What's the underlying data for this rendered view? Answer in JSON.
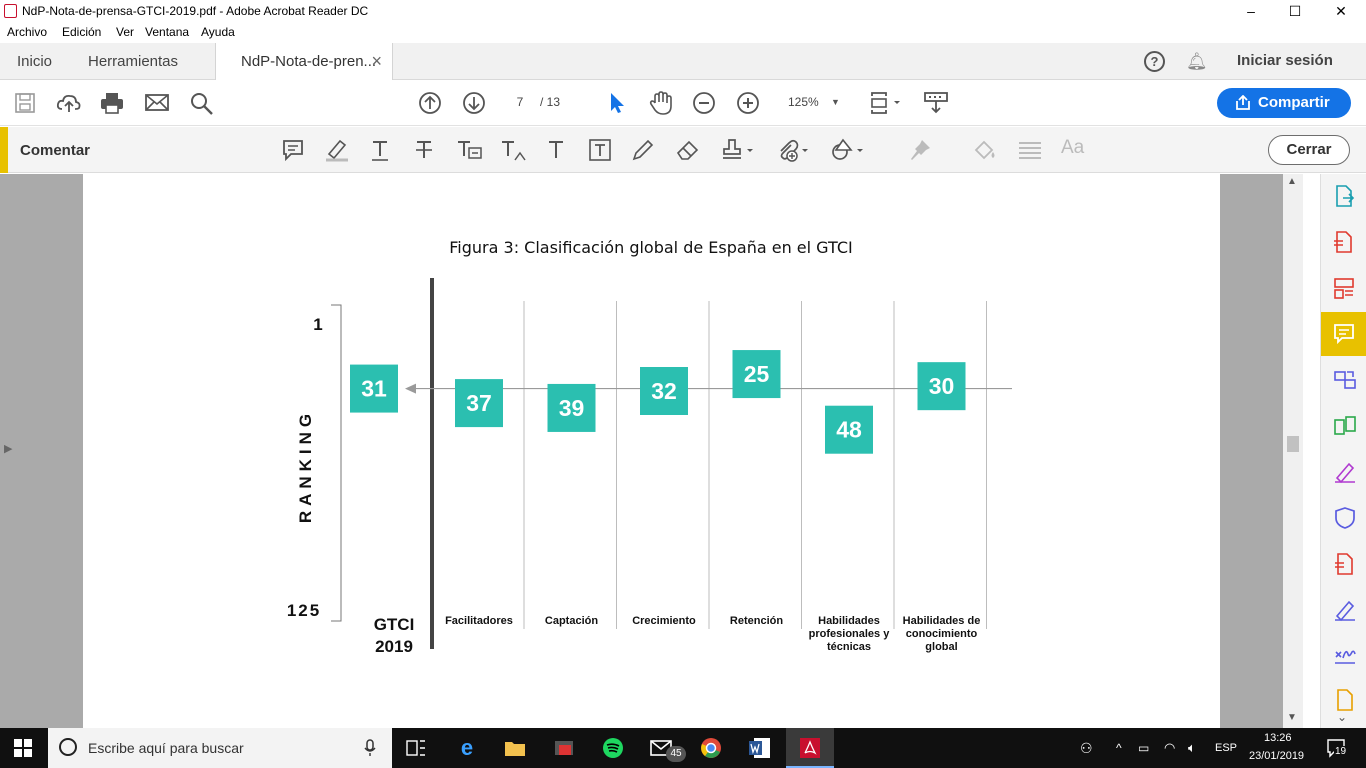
{
  "window": {
    "title": "NdP-Nota-de-prensa-GTCI-2019.pdf - Adobe Acrobat Reader DC",
    "controls": [
      "–",
      "☐",
      "✕"
    ]
  },
  "menubar": [
    "Archivo",
    "Edición",
    "Ver",
    "Ventana",
    "Ayuda"
  ],
  "tabs": {
    "home": "Inicio",
    "tools": "Herramientas",
    "document": "NdP-Nota-de-pren...",
    "close": "×",
    "help": "?",
    "sign_in": "Iniciar sesión"
  },
  "toolbar": {
    "page_current": "7",
    "page_total": "/ 13",
    "zoom": "125%",
    "share_label": "Compartir"
  },
  "commentbar": {
    "label": "Comentar",
    "close_label": "Cerrar",
    "text_size_icon": "Aa"
  },
  "document": {
    "chart_data": {
      "type": "scatter",
      "title": "Figura 3: Clasificación global de España en el GTCI",
      "ylabel": "RANKING",
      "y_tick_top": "1",
      "y_tick_bottom": "125",
      "ylim": [
        1,
        125
      ],
      "y_inverted": true,
      "overall": {
        "label_line1": "GTCI",
        "label_line2": "2019",
        "value": 31
      },
      "categories": [
        {
          "label": [
            "Facilitadores"
          ],
          "value": 37
        },
        {
          "label": [
            "Captación"
          ],
          "value": 39
        },
        {
          "label": [
            "Crecimiento"
          ],
          "value": 32
        },
        {
          "label": [
            "Retención"
          ],
          "value": 25
        },
        {
          "label": [
            "Habilidades",
            "profesionales y",
            "técnicas"
          ],
          "value": 48
        },
        {
          "label": [
            "Habilidades de",
            "conocimiento",
            "global"
          ],
          "value": 30
        }
      ],
      "box_color": "#2bbfb0",
      "reference_line_value": 31
    }
  },
  "taskbar": {
    "search_placeholder": "Escribe aquí para buscar",
    "mail_badge": "45",
    "language": "ESP",
    "time": "13:26",
    "date": "23/01/2019",
    "notifications": "19"
  }
}
